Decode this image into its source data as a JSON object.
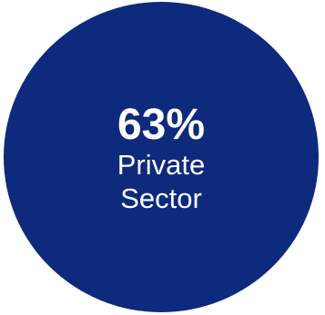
{
  "stat": {
    "value": "63%",
    "label_line_1": "Private",
    "label_line_2": "Sector"
  },
  "colors": {
    "circle_fill": "#0d2a7c",
    "text": "#ffffff",
    "background": "#ffffff"
  }
}
